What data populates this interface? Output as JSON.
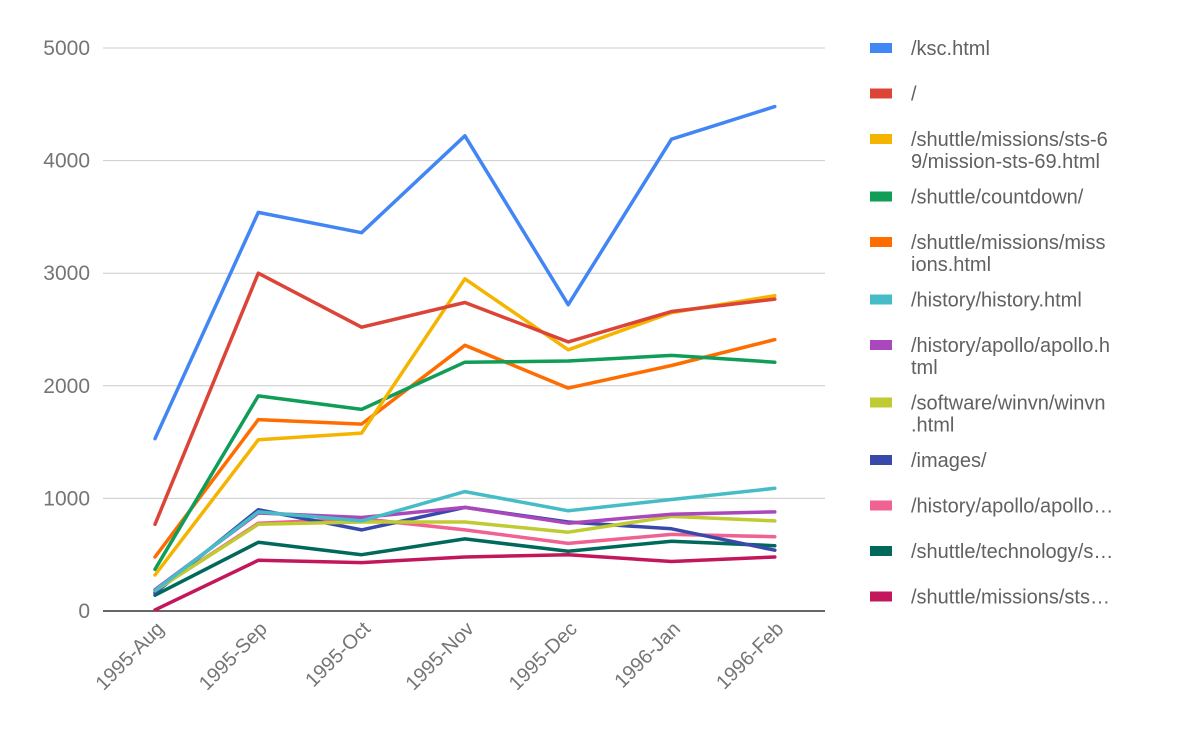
{
  "chart_data": {
    "type": "line",
    "title": "",
    "xlabel": "",
    "ylabel": "",
    "ylim": [
      0,
      5000
    ],
    "yticks": [
      "0",
      "1000",
      "2000",
      "3000",
      "4000",
      "5000"
    ],
    "grid": true,
    "legend_position": "right",
    "categories": [
      "1995-Aug",
      "1995-Sep",
      "1995-Oct",
      "1995-Nov",
      "1995-Dec",
      "1996-Jan",
      "1996-Feb"
    ],
    "series": [
      {
        "name": "/ksc.html",
        "display": [
          "/ksc.html"
        ],
        "color": "#4285F4",
        "values": [
          1530,
          3540,
          3360,
          4220,
          2720,
          4190,
          4480
        ]
      },
      {
        "name": "/",
        "display": [
          "/"
        ],
        "color": "#DB4437",
        "values": [
          770,
          3000,
          2520,
          2740,
          2390,
          2660,
          2770
        ]
      },
      {
        "name": "/shuttle/missions/sts-69/mission-sts-69.html",
        "display": [
          "/shuttle/missions/sts-6",
          "9/mission-sts-69.html"
        ],
        "color": "#F4B400",
        "values": [
          320,
          1520,
          1580,
          2950,
          2320,
          2650,
          2800
        ]
      },
      {
        "name": "/shuttle/countdown/",
        "display": [
          "/shuttle/countdown/"
        ],
        "color": "#0F9D58",
        "values": [
          370,
          1910,
          1790,
          2210,
          2220,
          2270,
          2210
        ]
      },
      {
        "name": "/shuttle/missions/missions.html",
        "display": [
          "/shuttle/missions/miss",
          "ions.html"
        ],
        "color": "#FF6D00",
        "values": [
          480,
          1700,
          1660,
          2360,
          1980,
          2180,
          2410
        ]
      },
      {
        "name": "/history/history.html",
        "display": [
          "/history/history.html"
        ],
        "color": "#46BDC6",
        "values": [
          180,
          880,
          800,
          1060,
          890,
          990,
          1090
        ]
      },
      {
        "name": "/history/apollo/apollo.html",
        "display": [
          "/history/apollo/apollo.h",
          "tml"
        ],
        "color": "#AB47BC",
        "values": [
          190,
          870,
          830,
          920,
          780,
          860,
          880
        ]
      },
      {
        "name": "/software/winvn/winvn.html",
        "display": [
          "/software/winvn/winvn",
          ".html"
        ],
        "color": "#C0CA33",
        "values": [
          180,
          770,
          790,
          790,
          700,
          840,
          800
        ]
      },
      {
        "name": "/images/",
        "display": [
          "/images/"
        ],
        "color": "#3949AB",
        "values": [
          160,
          900,
          720,
          920,
          790,
          730,
          540
        ]
      },
      {
        "name": "/history/apollo/apollo…",
        "display": [
          "/history/apollo/apollo…"
        ],
        "color": "#F06292",
        "values": [
          180,
          780,
          820,
          720,
          600,
          680,
          660
        ]
      },
      {
        "name": "/shuttle/technology/s…",
        "display": [
          "/shuttle/technology/s…"
        ],
        "color": "#00695C",
        "values": [
          140,
          610,
          500,
          640,
          530,
          620,
          580
        ]
      },
      {
        "name": "/shuttle/missions/sts…",
        "display": [
          "/shuttle/missions/sts…"
        ],
        "color": "#C2185B",
        "values": [
          10,
          450,
          430,
          480,
          500,
          440,
          480
        ]
      }
    ]
  }
}
